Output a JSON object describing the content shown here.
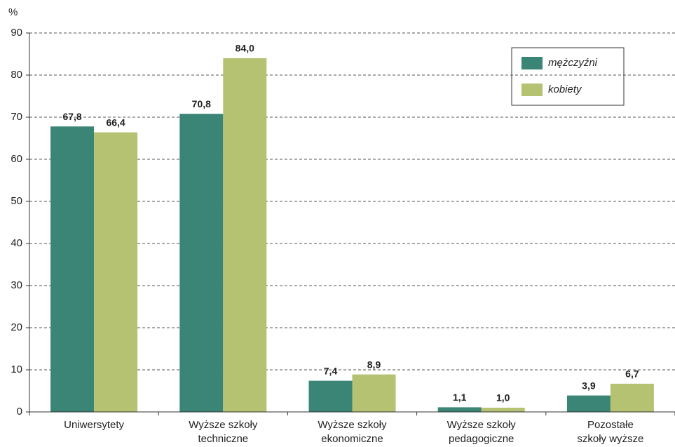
{
  "chart_data": {
    "type": "bar",
    "ylabel": "%",
    "categories": [
      [
        "Uniwersytety"
      ],
      [
        "Wyższe szkoły",
        "techniczne"
      ],
      [
        "Wyższe szkoły",
        "ekonomiczne"
      ],
      [
        "Wyższe szkoły",
        "pedagogiczne"
      ],
      [
        "Pozostałe",
        "szkoły wyższe"
      ]
    ],
    "series": [
      {
        "name": "mężczyźni",
        "color": "#3a8575",
        "values": [
          67.8,
          70.8,
          7.4,
          1.1,
          3.9
        ],
        "value_labels": [
          "67,8",
          "70,8",
          "7,4",
          "1,1",
          "3,9"
        ]
      },
      {
        "name": "kobiety",
        "color": "#b5c272",
        "values": [
          66.4,
          84.0,
          8.9,
          1.0,
          6.7
        ],
        "value_labels": [
          "66,4",
          "84,0",
          "8,9",
          "1,0",
          "6,7"
        ]
      }
    ],
    "ylim": [
      0,
      90
    ],
    "yticks": [
      0,
      10,
      20,
      30,
      40,
      50,
      60,
      70,
      80,
      90
    ],
    "grid": true,
    "legend": "top-right"
  }
}
